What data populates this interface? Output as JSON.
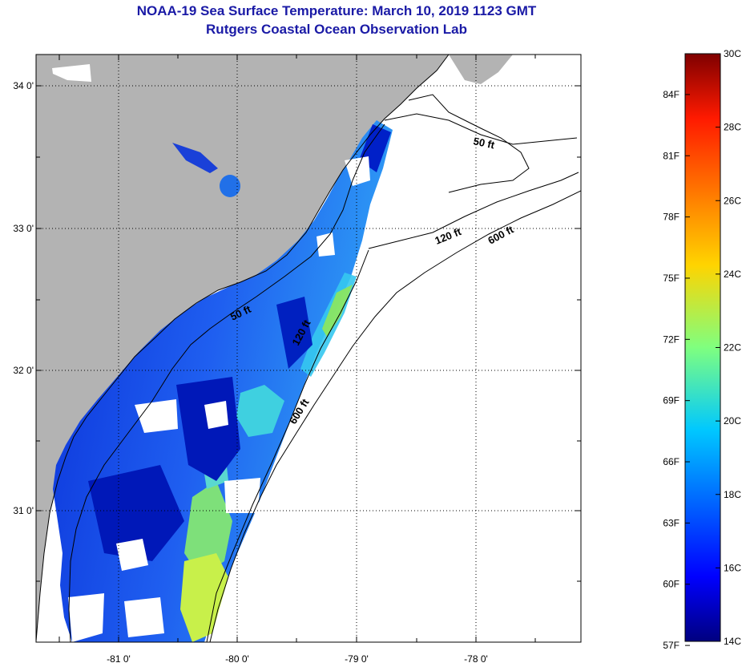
{
  "header": {
    "title_line1": "NOAA-19 Sea Surface Temperature:  March 10, 2019 1123 GMT",
    "title_line2": "Rutgers Coastal Ocean Observation Lab"
  },
  "map": {
    "lat_labels": [
      "34 0'",
      "33 0'",
      "32 0'",
      "31 0'"
    ],
    "lon_labels": [
      "-81 0'",
      "-80 0'",
      "-79 0'",
      "-78 0'"
    ],
    "contour_labels": [
      "50 ft",
      "120 ft",
      "600 ft",
      "50 ft",
      "120 ft",
      "600 ft"
    ],
    "colors": {
      "land": "#b3b3b3",
      "no_data": "#ffffff",
      "coast": "#000000"
    }
  },
  "colorbar": {
    "f_labels": [
      "84F",
      "81F",
      "78F",
      "75F",
      "72F",
      "69F",
      "66F",
      "63F",
      "60F",
      "57F"
    ],
    "c_labels": [
      "30C",
      "28C",
      "26C",
      "24C",
      "22C",
      "20C",
      "18C",
      "16C",
      "14C"
    ],
    "min_c": 14,
    "max_c": 30
  }
}
